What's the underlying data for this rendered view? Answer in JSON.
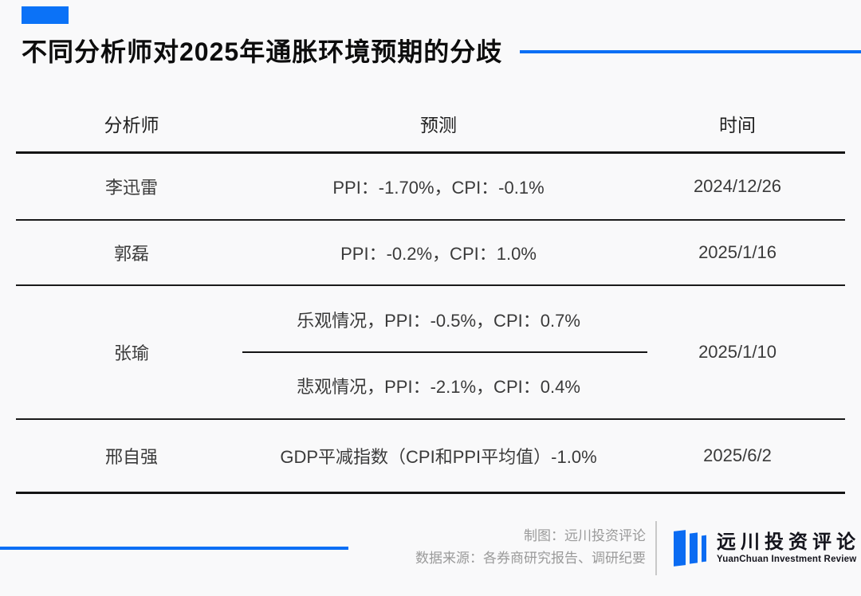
{
  "page": {
    "colors": {
      "background": "#f9f9fa",
      "accent_blue": "#0b6ff5",
      "table_line": "#141414",
      "credits_gray": "#9a9a9a"
    }
  },
  "header": {
    "title": "不同分析师对2025年通胀环境预期的分歧"
  },
  "table": {
    "columns": [
      "分析师",
      "预测",
      "时间"
    ],
    "rows": [
      {
        "analyst": "李迅雷",
        "forecast": "PPI：-1.70%，CPI：-0.1%",
        "date": "2024/12/26"
      },
      {
        "analyst": "郭磊",
        "forecast": "PPI：-0.2%，CPI：1.0%",
        "date": "2025/1/16"
      },
      {
        "analyst": "张瑜",
        "forecast_optimistic": "乐观情况，PPI：-0.5%，CPI：0.7%",
        "forecast_pessimistic": "悲观情况，PPI：-2.1%，CPI：0.4%",
        "date": "2025/1/10"
      },
      {
        "analyst": "邢自强",
        "forecast": "GDP平减指数（CPI和PPI平均值）-1.0%",
        "date": "2025/6/2"
      }
    ]
  },
  "footer": {
    "credit_maker": "制图：远川投资评论",
    "credit_source": "数据来源：各券商研究报告、调研纪要",
    "logo_cn": "远川投资评论",
    "logo_en": "YuanChuan Investment Review"
  },
  "chart_data": {
    "type": "table",
    "title": "不同分析师对2025年通胀环境预期的分歧",
    "columns": [
      "分析师",
      "预测",
      "时间"
    ],
    "rows": [
      [
        "李迅雷",
        "PPI：-1.70%，CPI：-0.1%",
        "2024/12/26"
      ],
      [
        "郭磊",
        "PPI：-0.2%，CPI：1.0%",
        "2025/1/16"
      ],
      [
        "张瑜",
        "乐观情况，PPI：-0.5%，CPI：0.7% ／ 悲观情况，PPI：-2.1%，CPI：0.4%",
        "2025/1/10"
      ],
      [
        "邢自强",
        "GDP平减指数（CPI和PPI平均值）-1.0%",
        "2025/6/2"
      ]
    ],
    "notes": "制图：远川投资评论；数据来源：各券商研究报告、调研纪要"
  }
}
